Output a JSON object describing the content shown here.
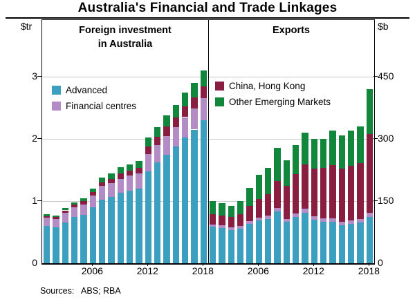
{
  "title": "Australia's Financial and Trade Linkages",
  "sources": "Sources:   ABS; RBA",
  "axes": {
    "left": {
      "unit": "$tr",
      "ticks": [
        0,
        1,
        2,
        3
      ]
    },
    "right": {
      "unit": "$b",
      "ticks": [
        0,
        150,
        300,
        450
      ]
    }
  },
  "chart_data": [
    {
      "type": "bar",
      "stacked": true,
      "title": "Foreign investment in Australia",
      "unit": "$tr",
      "ylim": [
        0,
        3.9
      ],
      "years": [
        2001,
        2002,
        2003,
        2004,
        2005,
        2006,
        2007,
        2008,
        2009,
        2010,
        2011,
        2012,
        2013,
        2014,
        2015,
        2016,
        2017,
        2018
      ],
      "x_ticks": [
        2006,
        2012,
        2018
      ],
      "legend": [
        "Advanced",
        "Financial centres"
      ],
      "series": [
        {
          "name": "Advanced",
          "color": "#3C9FC0",
          "values": [
            0.6,
            0.58,
            0.66,
            0.74,
            0.78,
            0.9,
            1.02,
            1.07,
            1.13,
            1.17,
            1.2,
            1.48,
            1.62,
            1.75,
            1.88,
            2.02,
            2.15,
            2.3
          ]
        },
        {
          "name": "Financial centres",
          "color": "#B48CC5",
          "values": [
            0.13,
            0.13,
            0.15,
            0.16,
            0.17,
            0.19,
            0.22,
            0.22,
            0.23,
            0.24,
            0.24,
            0.28,
            0.28,
            0.3,
            0.31,
            0.33,
            0.34,
            0.36
          ]
        },
        {
          "name": "China, Hong Kong",
          "color": "#8A1E41",
          "values": [
            0.03,
            0.03,
            0.04,
            0.04,
            0.05,
            0.05,
            0.06,
            0.07,
            0.08,
            0.08,
            0.09,
            0.12,
            0.13,
            0.15,
            0.16,
            0.17,
            0.18,
            0.19
          ]
        },
        {
          "name": "Other Emerging Markets",
          "color": "#11873B",
          "values": [
            0.03,
            0.03,
            0.04,
            0.04,
            0.05,
            0.06,
            0.08,
            0.09,
            0.1,
            0.1,
            0.11,
            0.14,
            0.16,
            0.18,
            0.2,
            0.22,
            0.23,
            0.25
          ]
        }
      ]
    },
    {
      "type": "bar",
      "stacked": true,
      "title": "Exports",
      "unit": "$b",
      "ylim": [
        0,
        585
      ],
      "years": [
        2001,
        2002,
        2003,
        2004,
        2005,
        2006,
        2007,
        2008,
        2009,
        2010,
        2011,
        2012,
        2013,
        2014,
        2015,
        2016,
        2017,
        2018
      ],
      "x_ticks": [
        2006,
        2012,
        2018
      ],
      "legend": [
        "China, Hong Kong",
        "Other Emerging Markets"
      ],
      "series": [
        {
          "name": "Advanced",
          "color": "#3C9FC0",
          "values": [
            88,
            85,
            80,
            84,
            95,
            103,
            107,
            125,
            100,
            112,
            122,
            105,
            100,
            100,
            92,
            95,
            98,
            112
          ]
        },
        {
          "name": "Financial centres",
          "color": "#B48CC5",
          "values": [
            6,
            6,
            6,
            6,
            7,
            7,
            8,
            9,
            7,
            8,
            9,
            8,
            8,
            8,
            8,
            8,
            8,
            10
          ]
        },
        {
          "name": "China, Hong Kong",
          "color": "#8A1E41",
          "values": [
            24,
            24,
            25,
            28,
            36,
            45,
            52,
            65,
            80,
            95,
            108,
            115,
            122,
            128,
            128,
            132,
            135,
            190
          ]
        },
        {
          "name": "Other Emerging Markets",
          "color": "#11873B",
          "values": [
            32,
            30,
            28,
            32,
            44,
            58,
            63,
            80,
            62,
            70,
            76,
            72,
            70,
            84,
            80,
            85,
            89,
            108
          ]
        }
      ]
    }
  ]
}
